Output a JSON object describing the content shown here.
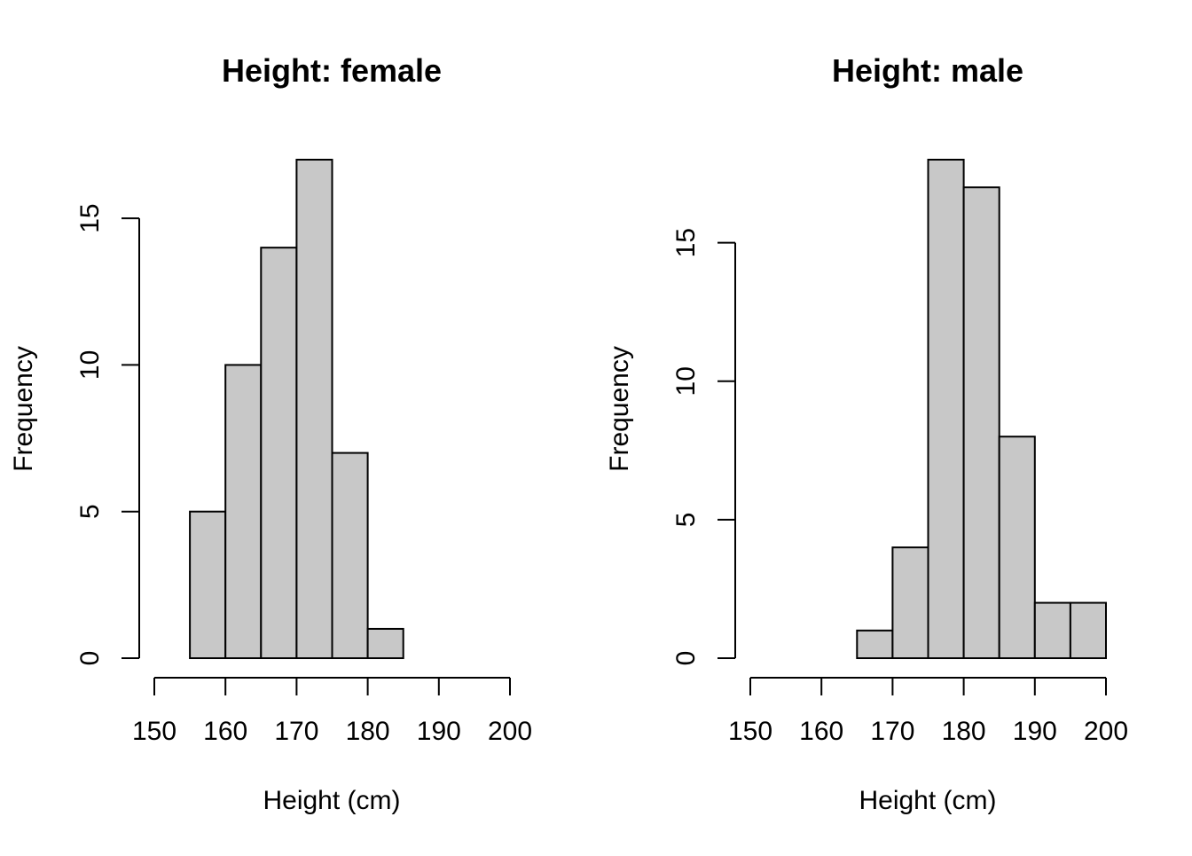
{
  "chart_data": [
    {
      "type": "bar",
      "title": "Height: female",
      "xlabel": "Height (cm)",
      "ylabel": "Frequency",
      "xlim": [
        150,
        200
      ],
      "x_ticks": [
        150,
        160,
        170,
        180,
        190,
        200
      ],
      "y_ticks": [
        0,
        5,
        10,
        15
      ],
      "ylim": [
        0,
        17
      ],
      "bins": [
        [
          155,
          160
        ],
        [
          160,
          165
        ],
        [
          165,
          170
        ],
        [
          170,
          175
        ],
        [
          175,
          180
        ],
        [
          180,
          185
        ]
      ],
      "values": [
        5,
        10,
        14,
        17,
        7,
        1
      ],
      "bar_color": "#c8c8c8",
      "grid": false
    },
    {
      "type": "bar",
      "title": "Height: male",
      "xlabel": "Height (cm)",
      "ylabel": "Frequency",
      "xlim": [
        150,
        200
      ],
      "x_ticks": [
        150,
        160,
        170,
        180,
        190,
        200
      ],
      "y_ticks": [
        0,
        5,
        10,
        15
      ],
      "ylim": [
        0,
        18
      ],
      "bins": [
        [
          165,
          170
        ],
        [
          170,
          175
        ],
        [
          175,
          180
        ],
        [
          180,
          185
        ],
        [
          185,
          190
        ],
        [
          190,
          195
        ],
        [
          195,
          200
        ]
      ],
      "values": [
        1,
        4,
        18,
        17,
        8,
        2,
        2
      ],
      "bar_color": "#c8c8c8",
      "grid": false
    }
  ]
}
